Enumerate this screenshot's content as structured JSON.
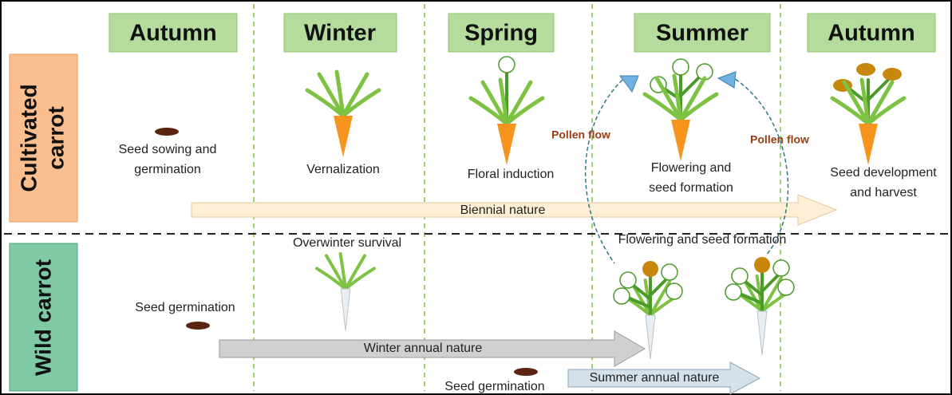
{
  "seasons": [
    "Autumn",
    "Winter",
    "Spring",
    "Summer",
    "Autumn"
  ],
  "rows": {
    "cultivated": [
      "Cultivated",
      "carrot"
    ],
    "wild": "Wild carrot"
  },
  "cultivated": {
    "stages": [
      [
        "Seed sowing and",
        "germination"
      ],
      [
        "Vernalization"
      ],
      [
        "Floral induction"
      ],
      [
        "Flowering and",
        "seed formation"
      ],
      [
        "Seed development",
        "and harvest"
      ]
    ],
    "pollen_flow": [
      "Pollen flow",
      "Pollen flow"
    ],
    "arrow": "Biennial nature"
  },
  "wild": {
    "stages": [
      "Overwinter survival",
      "Seed germination",
      "Flowering and seed formation",
      "Seed germination"
    ],
    "arrows": [
      "Winter annual nature",
      "Summer annual nature"
    ]
  }
}
